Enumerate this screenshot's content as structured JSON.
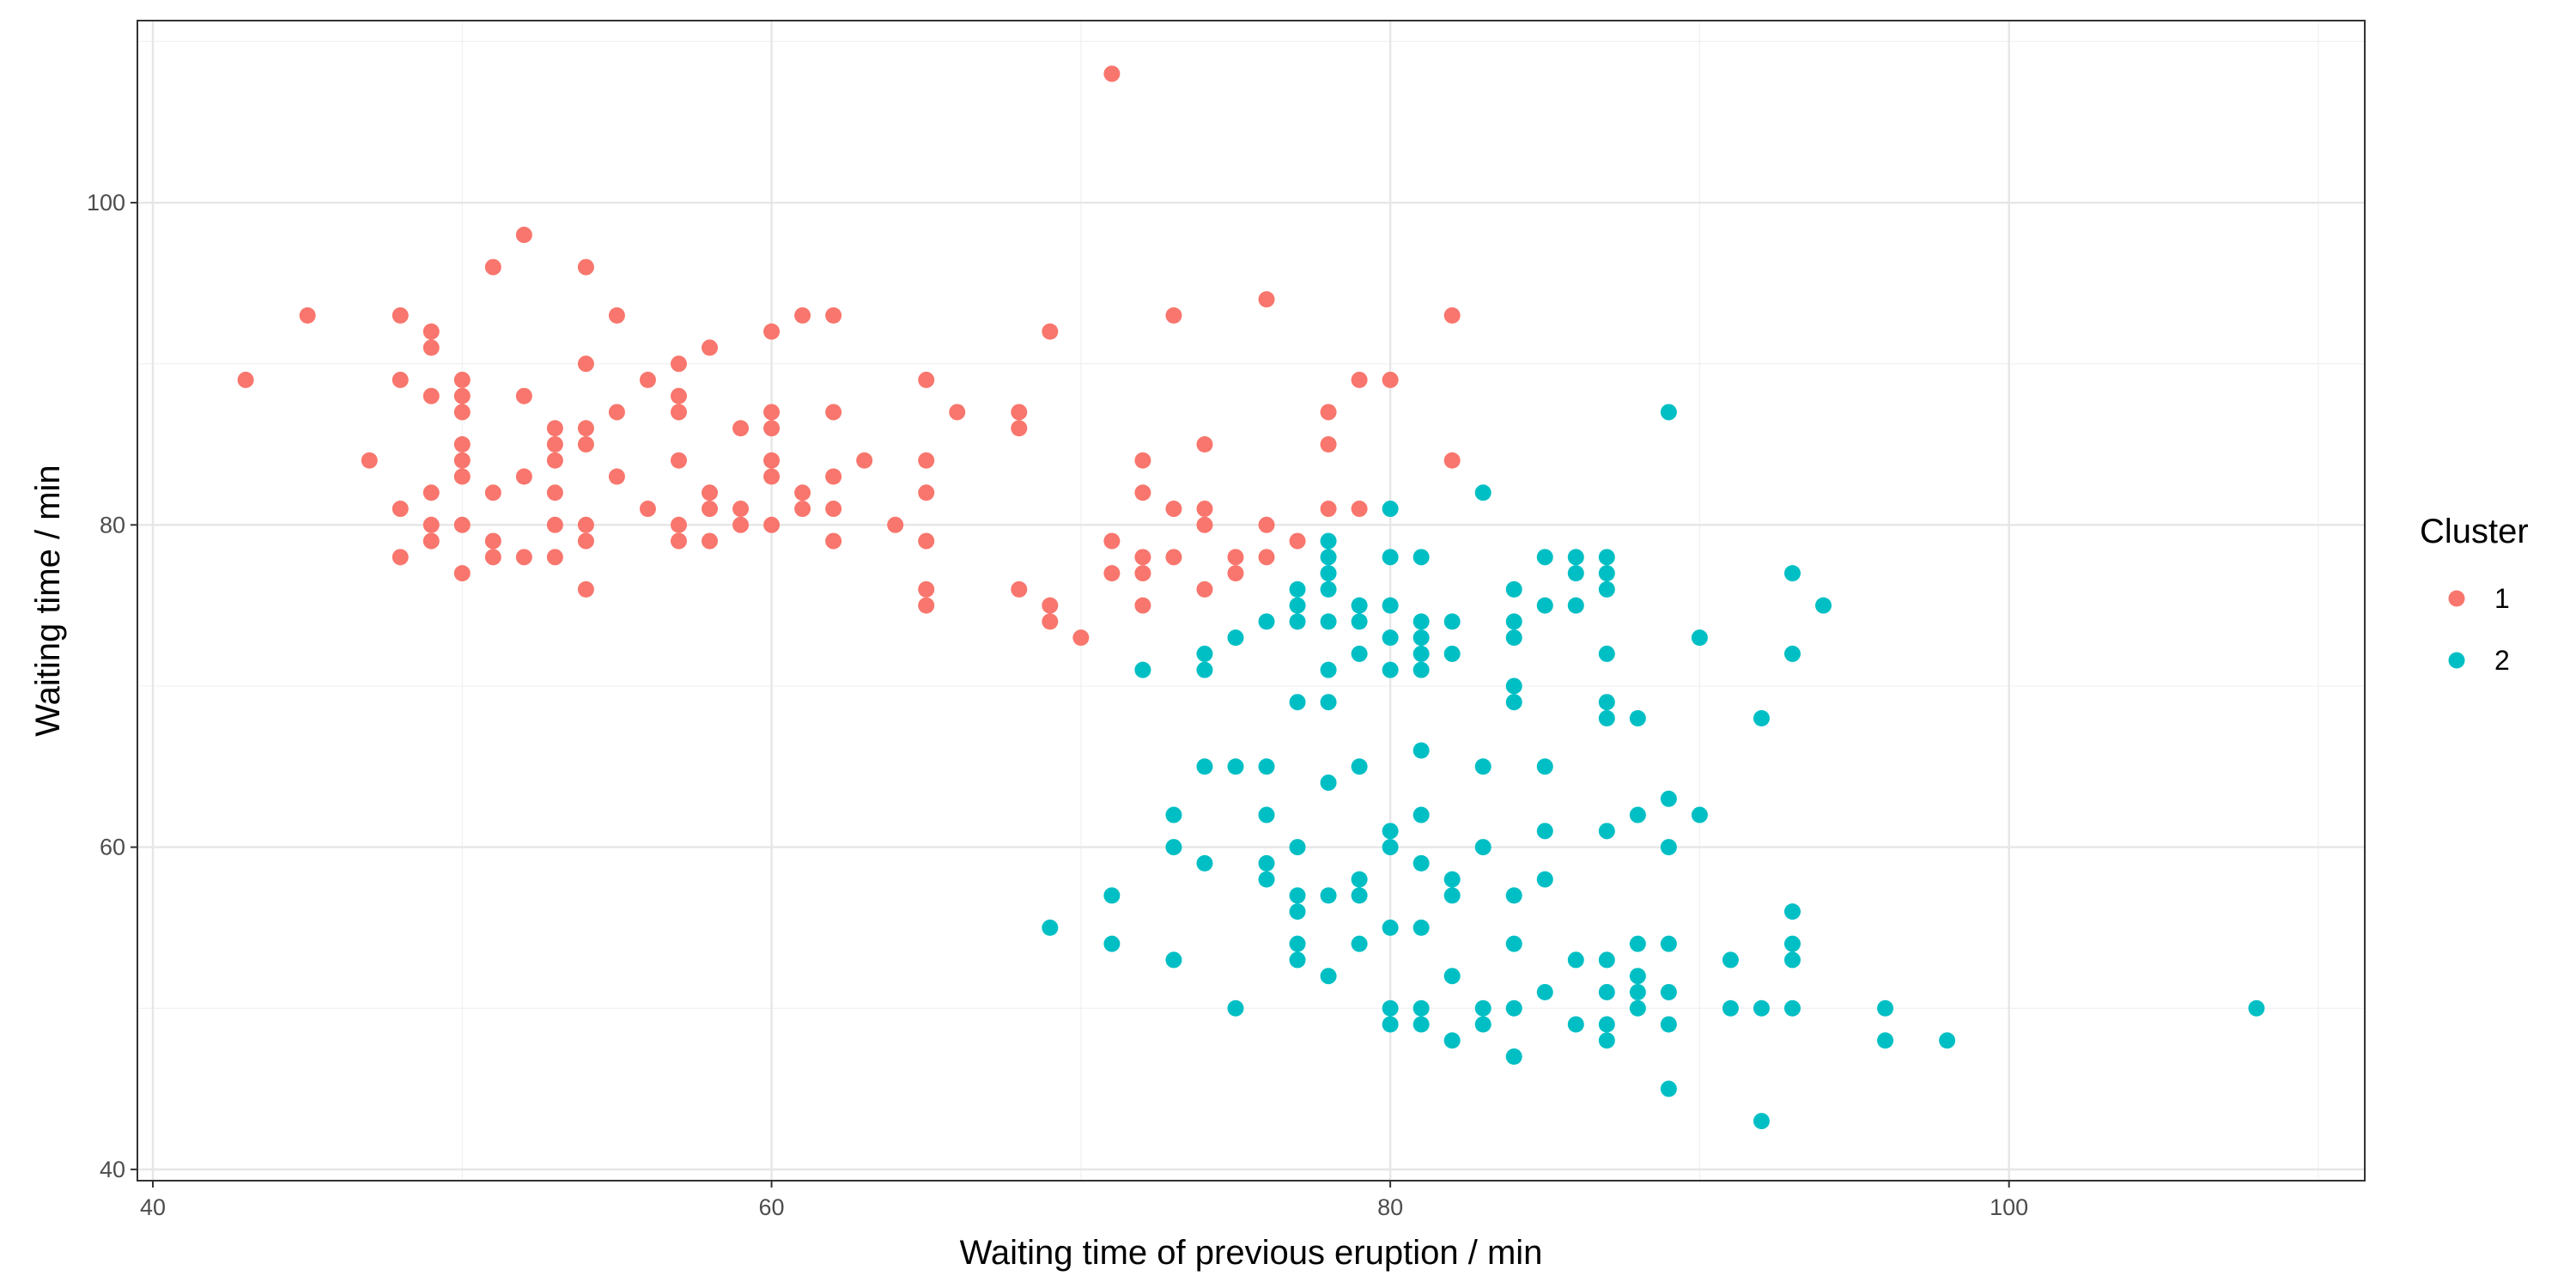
{
  "chart_data": {
    "type": "scatter",
    "xlabel": "Waiting time of previous eruption / min",
    "ylabel": "Waiting time / min",
    "xlim": [
      39.5,
      111.5
    ],
    "ylim": [
      39.3,
      111.3
    ],
    "x_ticks": [
      40,
      60,
      80,
      100
    ],
    "y_ticks": [
      40,
      60,
      80,
      100
    ],
    "grid": true,
    "legend": {
      "title": "Cluster",
      "position": "right"
    },
    "series": [
      {
        "name": "1",
        "color": "#F8766D",
        "points": [
          [
            43,
            89
          ],
          [
            45,
            93
          ],
          [
            47,
            84
          ],
          [
            48,
            93
          ],
          [
            48,
            89
          ],
          [
            48,
            81
          ],
          [
            48,
            78
          ],
          [
            49,
            92
          ],
          [
            49,
            91
          ],
          [
            49,
            88
          ],
          [
            49,
            82
          ],
          [
            49,
            80
          ],
          [
            49,
            79
          ],
          [
            50,
            89
          ],
          [
            50,
            88
          ],
          [
            50,
            87
          ],
          [
            50,
            85
          ],
          [
            50,
            84
          ],
          [
            50,
            83
          ],
          [
            50,
            80
          ],
          [
            50,
            77
          ],
          [
            51,
            96
          ],
          [
            51,
            82
          ],
          [
            51,
            79
          ],
          [
            51,
            78
          ],
          [
            52,
            98
          ],
          [
            52,
            88
          ],
          [
            52,
            83
          ],
          [
            52,
            78
          ],
          [
            53,
            86
          ],
          [
            53,
            85
          ],
          [
            53,
            84
          ],
          [
            53,
            82
          ],
          [
            53,
            80
          ],
          [
            53,
            78
          ],
          [
            54,
            96
          ],
          [
            54,
            90
          ],
          [
            54,
            86
          ],
          [
            54,
            85
          ],
          [
            54,
            80
          ],
          [
            54,
            79
          ],
          [
            54,
            76
          ],
          [
            55,
            93
          ],
          [
            55,
            87
          ],
          [
            55,
            83
          ],
          [
            56,
            89
          ],
          [
            56,
            81
          ],
          [
            57,
            90
          ],
          [
            57,
            88
          ],
          [
            57,
            87
          ],
          [
            57,
            84
          ],
          [
            57,
            80
          ],
          [
            57,
            79
          ],
          [
            58,
            91
          ],
          [
            58,
            82
          ],
          [
            58,
            81
          ],
          [
            58,
            79
          ],
          [
            59,
            86
          ],
          [
            59,
            81
          ],
          [
            59,
            80
          ],
          [
            60,
            92
          ],
          [
            60,
            87
          ],
          [
            60,
            86
          ],
          [
            60,
            84
          ],
          [
            60,
            83
          ],
          [
            60,
            80
          ],
          [
            61,
            93
          ],
          [
            61,
            82
          ],
          [
            61,
            81
          ],
          [
            62,
            93
          ],
          [
            62,
            87
          ],
          [
            62,
            83
          ],
          [
            62,
            81
          ],
          [
            62,
            79
          ],
          [
            63,
            84
          ],
          [
            64,
            80
          ],
          [
            65,
            89
          ],
          [
            65,
            84
          ],
          [
            65,
            82
          ],
          [
            65,
            79
          ],
          [
            65,
            76
          ],
          [
            65,
            75
          ],
          [
            66,
            87
          ],
          [
            68,
            87
          ],
          [
            68,
            86
          ],
          [
            68,
            76
          ],
          [
            69,
            92
          ],
          [
            69,
            75
          ],
          [
            69,
            74
          ],
          [
            70,
            73
          ],
          [
            71,
            108
          ],
          [
            71,
            79
          ],
          [
            71,
            77
          ],
          [
            72,
            84
          ],
          [
            72,
            82
          ],
          [
            72,
            78
          ],
          [
            72,
            77
          ],
          [
            72,
            75
          ],
          [
            73,
            93
          ],
          [
            73,
            81
          ],
          [
            73,
            78
          ],
          [
            74,
            85
          ],
          [
            74,
            81
          ],
          [
            74,
            80
          ],
          [
            74,
            76
          ],
          [
            75,
            78
          ],
          [
            75,
            77
          ],
          [
            76,
            94
          ],
          [
            76,
            80
          ],
          [
            76,
            78
          ],
          [
            77,
            79
          ],
          [
            78,
            87
          ],
          [
            78,
            85
          ],
          [
            78,
            81
          ],
          [
            79,
            89
          ],
          [
            79,
            81
          ],
          [
            80,
            89
          ],
          [
            82,
            93
          ],
          [
            82,
            84
          ]
        ]
      },
      {
        "name": "2",
        "color": "#00BFC4",
        "points": [
          [
            69,
            55
          ],
          [
            71,
            57
          ],
          [
            71,
            54
          ],
          [
            72,
            71
          ],
          [
            73,
            62
          ],
          [
            73,
            60
          ],
          [
            73,
            53
          ],
          [
            74,
            72
          ],
          [
            74,
            71
          ],
          [
            74,
            65
          ],
          [
            74,
            59
          ],
          [
            75,
            73
          ],
          [
            75,
            65
          ],
          [
            75,
            50
          ],
          [
            76,
            74
          ],
          [
            76,
            65
          ],
          [
            76,
            62
          ],
          [
            76,
            59
          ],
          [
            76,
            58
          ],
          [
            77,
            76
          ],
          [
            77,
            75
          ],
          [
            77,
            74
          ],
          [
            77,
            69
          ],
          [
            77,
            60
          ],
          [
            77,
            57
          ],
          [
            77,
            56
          ],
          [
            77,
            54
          ],
          [
            77,
            53
          ],
          [
            78,
            79
          ],
          [
            78,
            78
          ],
          [
            78,
            77
          ],
          [
            78,
            76
          ],
          [
            78,
            74
          ],
          [
            78,
            71
          ],
          [
            78,
            69
          ],
          [
            78,
            64
          ],
          [
            78,
            57
          ],
          [
            78,
            52
          ],
          [
            79,
            75
          ],
          [
            79,
            74
          ],
          [
            79,
            72
          ],
          [
            79,
            65
          ],
          [
            79,
            58
          ],
          [
            79,
            57
          ],
          [
            79,
            54
          ],
          [
            80,
            81
          ],
          [
            80,
            78
          ],
          [
            80,
            75
          ],
          [
            80,
            73
          ],
          [
            80,
            71
          ],
          [
            80,
            61
          ],
          [
            80,
            60
          ],
          [
            80,
            55
          ],
          [
            80,
            50
          ],
          [
            80,
            49
          ],
          [
            81,
            78
          ],
          [
            81,
            74
          ],
          [
            81,
            73
          ],
          [
            81,
            72
          ],
          [
            81,
            71
          ],
          [
            81,
            66
          ],
          [
            81,
            62
          ],
          [
            81,
            59
          ],
          [
            81,
            55
          ],
          [
            81,
            50
          ],
          [
            81,
            49
          ],
          [
            82,
            74
          ],
          [
            82,
            72
          ],
          [
            82,
            58
          ],
          [
            82,
            57
          ],
          [
            82,
            52
          ],
          [
            82,
            48
          ],
          [
            83,
            82
          ],
          [
            83,
            65
          ],
          [
            83,
            60
          ],
          [
            83,
            50
          ],
          [
            83,
            49
          ],
          [
            84,
            76
          ],
          [
            84,
            74
          ],
          [
            84,
            73
          ],
          [
            84,
            70
          ],
          [
            84,
            69
          ],
          [
            84,
            57
          ],
          [
            84,
            54
          ],
          [
            84,
            50
          ],
          [
            84,
            47
          ],
          [
            85,
            78
          ],
          [
            85,
            75
          ],
          [
            85,
            65
          ],
          [
            85,
            61
          ],
          [
            85,
            58
          ],
          [
            85,
            51
          ],
          [
            86,
            78
          ],
          [
            86,
            77
          ],
          [
            86,
            75
          ],
          [
            86,
            53
          ],
          [
            86,
            49
          ],
          [
            87,
            78
          ],
          [
            87,
            77
          ],
          [
            87,
            76
          ],
          [
            87,
            72
          ],
          [
            87,
            69
          ],
          [
            87,
            68
          ],
          [
            87,
            61
          ],
          [
            87,
            53
          ],
          [
            87,
            51
          ],
          [
            87,
            49
          ],
          [
            87,
            48
          ],
          [
            88,
            68
          ],
          [
            88,
            62
          ],
          [
            88,
            54
          ],
          [
            88,
            52
          ],
          [
            88,
            51
          ],
          [
            88,
            50
          ],
          [
            89,
            87
          ],
          [
            89,
            63
          ],
          [
            89,
            60
          ],
          [
            89,
            54
          ],
          [
            89,
            51
          ],
          [
            89,
            49
          ],
          [
            89,
            45
          ],
          [
            90,
            73
          ],
          [
            90,
            62
          ],
          [
            91,
            53
          ],
          [
            91,
            50
          ],
          [
            92,
            68
          ],
          [
            92,
            50
          ],
          [
            92,
            43
          ],
          [
            93,
            77
          ],
          [
            93,
            72
          ],
          [
            93,
            56
          ],
          [
            93,
            54
          ],
          [
            93,
            53
          ],
          [
            93,
            50
          ],
          [
            94,
            75
          ],
          [
            96,
            50
          ],
          [
            96,
            48
          ],
          [
            98,
            48
          ],
          [
            108,
            50
          ]
        ]
      }
    ]
  }
}
